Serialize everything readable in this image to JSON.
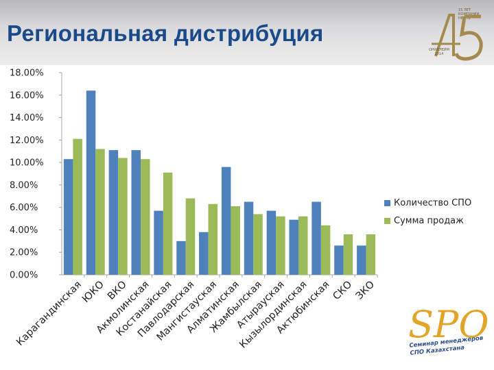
{
  "page": {
    "title": "Региональная дистрибуция"
  },
  "logo": {
    "name_lines": [
      "15 ЛЕТ",
      "КОМПАНИИ",
      "НЕФТЬ"
    ],
    "number": "45",
    "footer_lines": [
      "ОРИФЛЕЙМ",
      "2014"
    ]
  },
  "brand": {
    "logo_text": "SPO",
    "caption_line1": "Семинар менеджеров",
    "caption_line2": "СПО Казахстана"
  },
  "colors": {
    "series1": "#4f81bd",
    "series2": "#9bbb59",
    "axis": "#a6a6a6",
    "grid": "#d9d9d9"
  },
  "chart_data": {
    "type": "bar",
    "categories": [
      "Карагандинская",
      "ЮКО",
      "ВКО",
      "Акмолинская",
      "Костанайская",
      "Павлодарская",
      "Мангистауская",
      "Алматинская",
      "Жамбылская",
      "Атырауская",
      "Кызылординская",
      "Актюбинская",
      "СКО",
      "ЗКО"
    ],
    "series": [
      {
        "name": "Количество СПО",
        "values": [
          10.3,
          16.4,
          11.1,
          11.1,
          5.7,
          3.0,
          3.8,
          9.6,
          6.5,
          5.7,
          4.9,
          6.5,
          2.6,
          2.6
        ]
      },
      {
        "name": "Сумма продаж",
        "values": [
          12.1,
          11.2,
          10.4,
          10.3,
          9.1,
          6.8,
          6.3,
          6.1,
          5.4,
          5.2,
          5.2,
          4.4,
          3.6,
          3.6
        ]
      }
    ],
    "ylim": [
      0,
      18
    ],
    "yticks": [
      "0.00%",
      "2.00%",
      "4.00%",
      "6.00%",
      "8.00%",
      "10.00%",
      "12.00%",
      "14.00%",
      "16.00%",
      "18.00%"
    ],
    "grid": false,
    "legend_position": "right"
  }
}
